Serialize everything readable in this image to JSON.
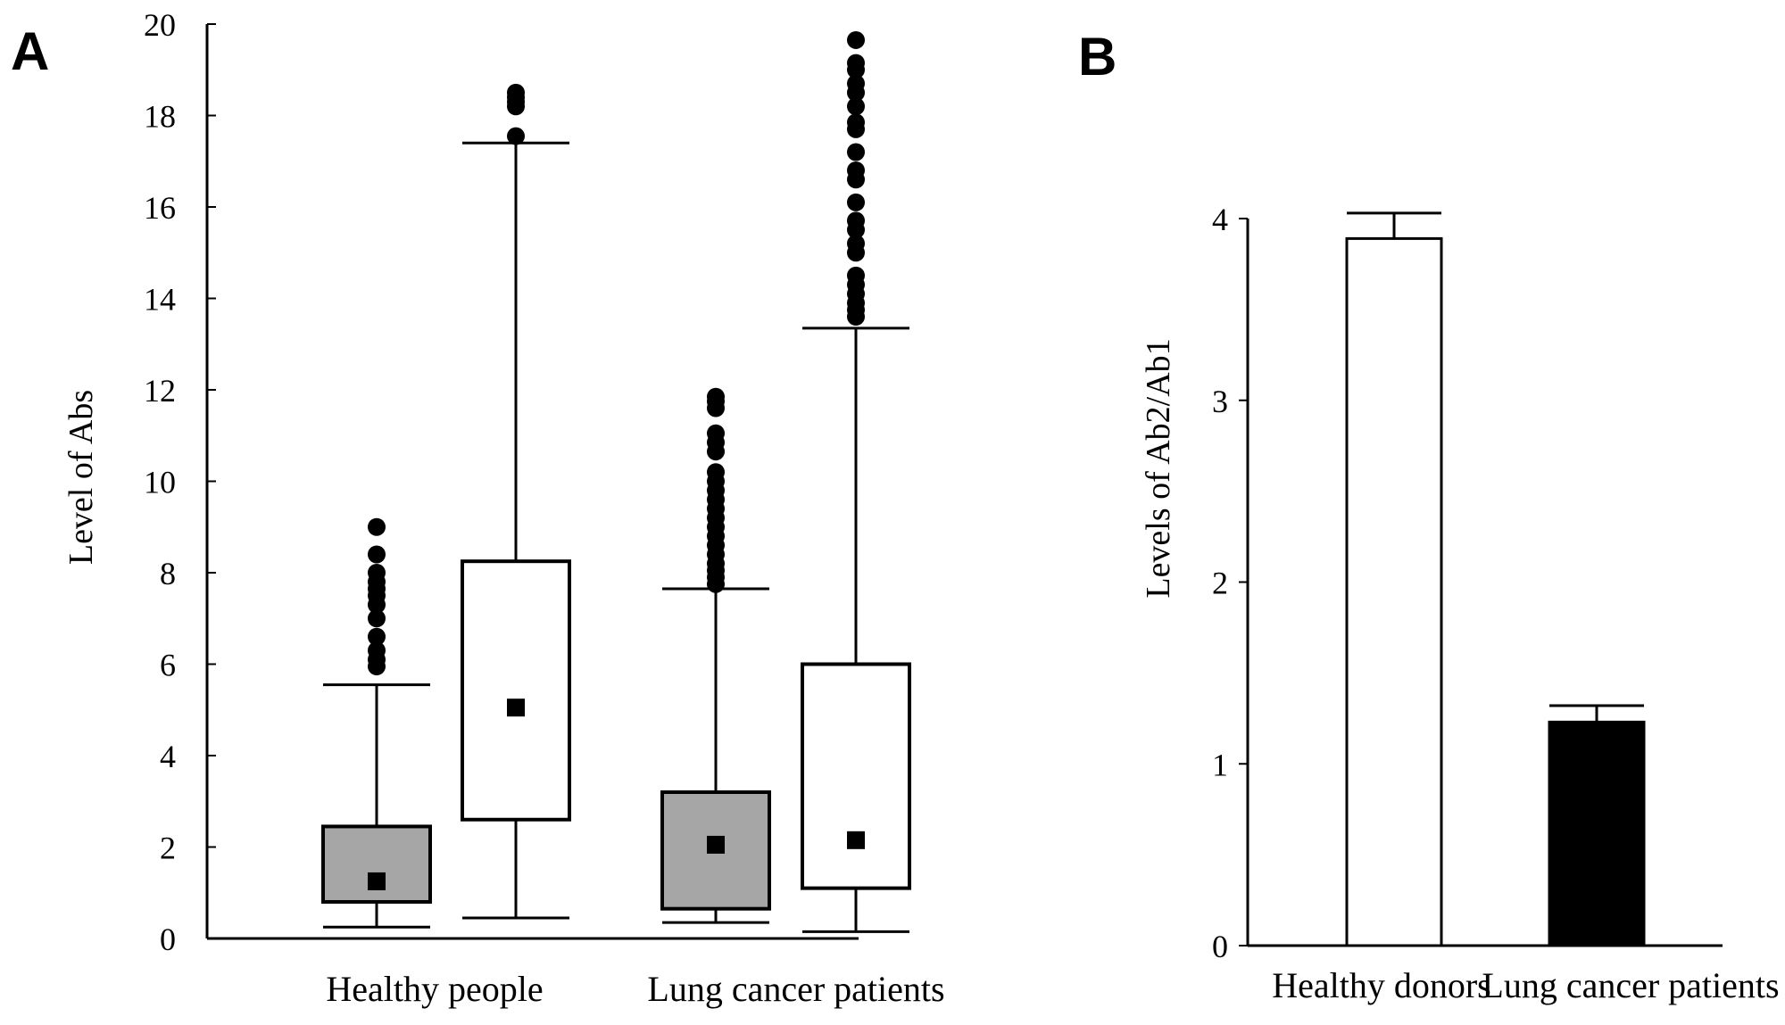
{
  "panels": {
    "a": {
      "label": "A"
    },
    "b": {
      "label": "B"
    }
  },
  "chart_data": [
    {
      "type": "box",
      "ylabel": "Level of Abs",
      "xlabel": "",
      "ylim": [
        0,
        20
      ],
      "yticks": [
        0,
        2,
        4,
        6,
        8,
        10,
        12,
        14,
        16,
        18,
        20
      ],
      "categories": [
        "Healthy people",
        "Lung cancer patients"
      ],
      "colors": {
        "gray_box": "#a6a6a6",
        "white_box": "#ffffff",
        "ink": "#000000"
      },
      "boxes": [
        {
          "category": "Healthy people",
          "fill": "gray",
          "whisker_low": 0.25,
          "q1": 0.8,
          "q3": 2.45,
          "whisker_high": 5.55,
          "mean": 1.25,
          "outliers": [
            5.95,
            6.1,
            6.3,
            6.6,
            7.0,
            7.3,
            7.5,
            7.65,
            7.8,
            8.0,
            8.4,
            9.0
          ]
        },
        {
          "category": "Healthy people",
          "fill": "white",
          "whisker_low": 0.45,
          "q1": 2.6,
          "q3": 8.25,
          "whisker_high": 17.4,
          "mean": 5.05,
          "outliers": [
            17.55,
            18.2,
            18.3,
            18.4,
            18.5
          ]
        },
        {
          "category": "Lung cancer patients",
          "fill": "gray",
          "whisker_low": 0.35,
          "q1": 0.65,
          "q3": 3.2,
          "whisker_high": 7.65,
          "mean": 2.05,
          "outliers": [
            7.75,
            7.9,
            8.05,
            8.2,
            8.4,
            8.6,
            8.8,
            9.0,
            9.2,
            9.4,
            9.6,
            9.8,
            10.0,
            10.2,
            10.65,
            10.85,
            11.05,
            11.6,
            11.75,
            11.85
          ]
        },
        {
          "category": "Lung cancer patients",
          "fill": "white",
          "whisker_low": 0.15,
          "q1": 1.1,
          "q3": 6.0,
          "whisker_high": 13.35,
          "mean": 2.15,
          "outliers": [
            13.6,
            13.75,
            13.9,
            14.1,
            14.3,
            14.5,
            15.0,
            15.2,
            15.5,
            15.7,
            16.1,
            16.6,
            16.8,
            17.2,
            17.7,
            17.85,
            18.2,
            18.5,
            18.7,
            19.0,
            19.15,
            19.65
          ]
        }
      ]
    },
    {
      "type": "bar",
      "ylabel": "Levels of Ab2/Ab1",
      "xlabel": "",
      "ylim": [
        0,
        4
      ],
      "yticks": [
        0,
        1,
        2,
        3,
        4
      ],
      "categories": [
        "Healthy donors",
        "Lung cancer patients"
      ],
      "values": [
        3.89,
        1.23
      ],
      "errors": [
        0.14,
        0.09
      ],
      "colors": [
        "#ffffff",
        "#000000"
      ]
    }
  ]
}
